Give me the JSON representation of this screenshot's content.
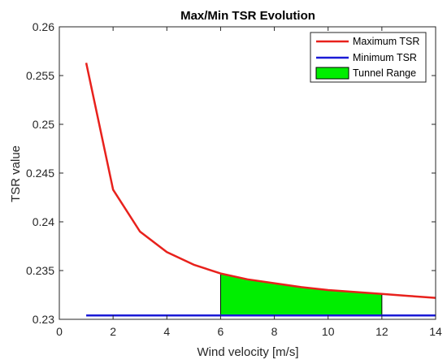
{
  "chart_data": {
    "type": "line",
    "title": "Max/Min TSR Evolution",
    "xlabel": "Wind velocity [m/s]",
    "ylabel": "TSR value",
    "xlim": [
      0,
      14
    ],
    "ylim": [
      0.23,
      0.26
    ],
    "xticks": [
      0,
      2,
      4,
      6,
      8,
      10,
      12,
      14
    ],
    "xtick_labels": [
      "0",
      "2",
      "4",
      "6",
      "8",
      "10",
      "12",
      "14"
    ],
    "yticks": [
      0.23,
      0.235,
      0.24,
      0.245,
      0.25,
      0.255,
      0.26
    ],
    "ytick_labels": [
      "0.23",
      "0.235",
      "0.24",
      "0.245",
      "0.25",
      "0.255",
      "0.26"
    ],
    "grid": false,
    "legend_position": "top-right",
    "series": [
      {
        "name": "Maximum TSR",
        "color": "#e8211c",
        "x": [
          1,
          2,
          3,
          4,
          5,
          6,
          7,
          8,
          9,
          10,
          11,
          12,
          13,
          14
        ],
        "y": [
          0.2563,
          0.2433,
          0.239,
          0.2369,
          0.2356,
          0.2347,
          0.2341,
          0.2337,
          0.2333,
          0.233,
          0.2328,
          0.2326,
          0.2324,
          0.2322
        ]
      },
      {
        "name": "Minimum TSR",
        "color": "#1a1ad6",
        "x": [
          1,
          14
        ],
        "y": [
          0.2304,
          0.2304
        ]
      }
    ],
    "area": {
      "name": "Tunnel Range",
      "color": "#00ee00",
      "x_range": [
        6,
        12
      ]
    }
  }
}
